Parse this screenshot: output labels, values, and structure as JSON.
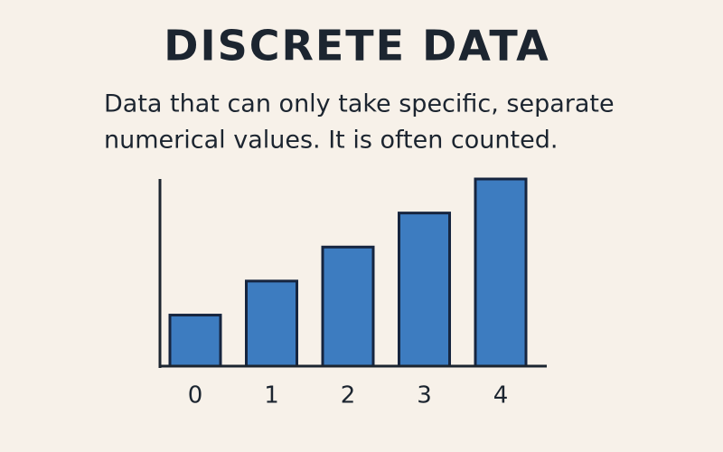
{
  "chart_data": {
    "type": "bar",
    "title": "DISCRETE DATA",
    "subtitle": [
      "Data that can only take specific, separate",
      "numerical values. It is often counted."
    ],
    "categories": [
      "0",
      "1",
      "2",
      "3",
      "4"
    ],
    "values": [
      1.5,
      2.5,
      3.5,
      4.5,
      5.5
    ],
    "color": "#3d7cc0",
    "ylim": [
      0,
      5.5
    ]
  }
}
